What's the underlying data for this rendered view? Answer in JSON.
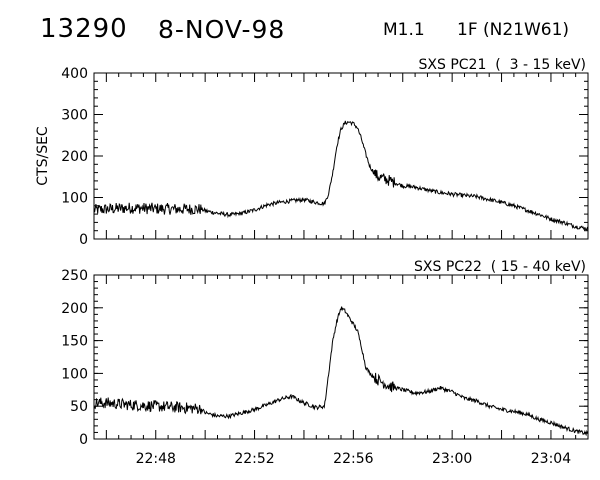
{
  "header": {
    "event_id": "13290",
    "date": "8-NOV-98",
    "goes_class": "M1.1",
    "optical": "1F (N21W61)"
  },
  "chart_data": [
    {
      "type": "line",
      "title": "SXS PC21  (  3 - 15 keV)",
      "ylabel": "CTS/SEC",
      "xlabel": "",
      "x_unit": "UT time",
      "xlim": [
        "22:45:30",
        "23:05:30"
      ],
      "ylim": [
        0,
        400
      ],
      "y_ticks": [
        0,
        100,
        200,
        300,
        400
      ],
      "x_ticks": [
        "22:48",
        "22:52",
        "22:56",
        "23:00",
        "23:04"
      ],
      "grid": false,
      "series": [
        {
          "x": [
            "22:45:30",
            "22:46:00",
            "22:47:00",
            "22:48:00",
            "22:49:00",
            "22:49:50",
            "22:50:00",
            "22:50:30",
            "22:51:00",
            "22:51:30",
            "22:52:00",
            "22:52:30",
            "22:53:00",
            "22:53:30",
            "22:54:00",
            "22:54:30",
            "22:54:50",
            "22:55:00",
            "22:55:10",
            "22:55:20",
            "22:55:30",
            "22:55:40",
            "22:55:50",
            "22:56:00",
            "22:56:10",
            "22:56:20",
            "22:56:30",
            "22:56:40",
            "22:56:50",
            "22:57:00",
            "22:57:30",
            "22:58:00",
            "22:58:30",
            "22:59:00",
            "22:59:30",
            "23:00:00",
            "23:00:30",
            "23:01:00",
            "23:01:30",
            "23:02:00",
            "23:02:30",
            "23:03:00",
            "23:03:30",
            "23:04:00",
            "23:04:30",
            "23:05:00",
            "23:05:30"
          ],
          "y": [
            70,
            72,
            75,
            73,
            72,
            72,
            68,
            62,
            58,
            62,
            70,
            82,
            88,
            92,
            95,
            88,
            85,
            110,
            160,
            225,
            265,
            280,
            282,
            278,
            268,
            240,
            205,
            175,
            160,
            150,
            140,
            128,
            125,
            118,
            112,
            108,
            105,
            102,
            95,
            88,
            80,
            70,
            60,
            48,
            40,
            30,
            25
          ],
          "noisy_until": "22:49:50",
          "noisy_window": [
            "22:56:50",
            "22:57:40"
          ]
        }
      ]
    },
    {
      "type": "line",
      "title": "SXS PC22  ( 15 - 40 keV)",
      "ylabel": "",
      "xlabel": "",
      "x_unit": "UT time",
      "xlim": [
        "22:45:30",
        "23:05:30"
      ],
      "ylim": [
        0,
        250
      ],
      "y_ticks": [
        0,
        50,
        100,
        150,
        200,
        250
      ],
      "x_ticks": [
        "22:48",
        "22:52",
        "22:56",
        "23:00",
        "23:04"
      ],
      "grid": false,
      "series": [
        {
          "x": [
            "22:45:30",
            "22:46:00",
            "22:47:00",
            "22:48:00",
            "22:49:00",
            "22:49:50",
            "22:50:00",
            "22:50:30",
            "22:51:00",
            "22:51:30",
            "22:52:00",
            "22:52:30",
            "22:53:00",
            "22:53:30",
            "22:54:00",
            "22:54:30",
            "22:54:50",
            "22:55:00",
            "22:55:10",
            "22:55:20",
            "22:55:30",
            "22:55:40",
            "22:55:50",
            "22:56:00",
            "22:56:10",
            "22:56:20",
            "22:56:30",
            "22:56:40",
            "22:56:50",
            "22:57:00",
            "22:57:30",
            "22:58:00",
            "22:58:30",
            "22:59:00",
            "22:59:30",
            "23:00:00",
            "23:00:30",
            "23:01:00",
            "23:01:30",
            "23:02:00",
            "23:02:30",
            "23:03:00",
            "23:03:30",
            "23:04:00",
            "23:04:30",
            "23:05:00",
            "23:05:30"
          ],
          "y": [
            55,
            55,
            52,
            50,
            48,
            46,
            40,
            35,
            35,
            40,
            45,
            52,
            60,
            65,
            55,
            48,
            50,
            100,
            150,
            180,
            200,
            195,
            185,
            175,
            165,
            140,
            110,
            100,
            95,
            90,
            80,
            75,
            70,
            72,
            78,
            72,
            62,
            58,
            50,
            45,
            42,
            38,
            30,
            25,
            18,
            12,
            8
          ],
          "noisy_until": "22:49:50",
          "noisy_window": [
            "22:56:50",
            "22:57:40"
          ]
        }
      ]
    }
  ]
}
